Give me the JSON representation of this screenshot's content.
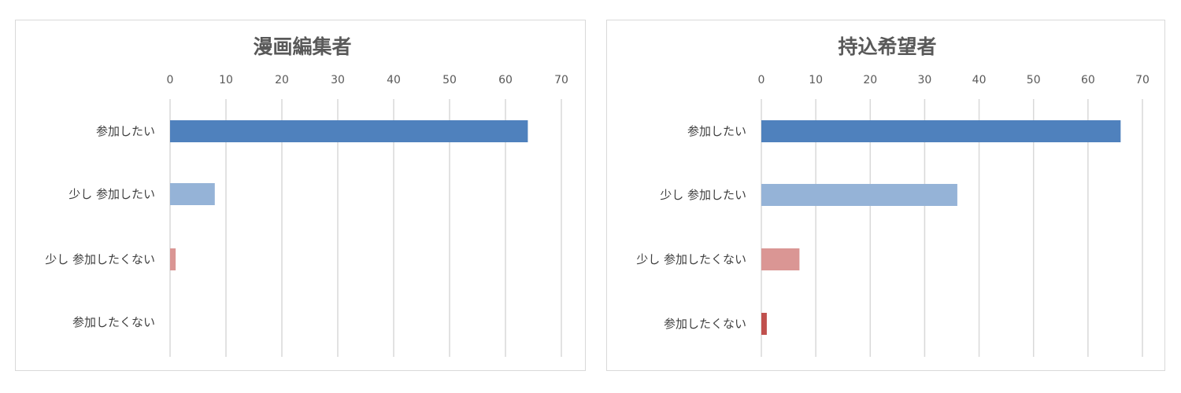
{
  "chart_data": [
    {
      "type": "bar",
      "orientation": "horizontal",
      "title": "漫画編集者",
      "categories": [
        "参加したい",
        "少し参加したい",
        "少し参加したくない",
        "参加したくない"
      ],
      "category_display": [
        "参加したい",
        "少し 参加したい",
        "少し 参加したくない",
        "参加したくない"
      ],
      "values": [
        64,
        8,
        1,
        0
      ],
      "colors": [
        "#4f81bd",
        "#95b3d7",
        "#da9694",
        "#c0504d"
      ],
      "xlim": [
        0,
        70
      ],
      "xticks": [
        "0",
        "10",
        "20",
        "30",
        "40",
        "50",
        "60",
        "70"
      ],
      "x_axis_position": "top",
      "grid": true
    },
    {
      "type": "bar",
      "orientation": "horizontal",
      "title": "持込希望者",
      "categories": [
        "参加したい",
        "少し参加したい",
        "少し参加したくない",
        "参加したくない"
      ],
      "category_display": [
        "参加したい",
        "少し 参加したい",
        "少し 参加したくない",
        "参加したくない"
      ],
      "values": [
        66,
        36,
        7,
        1
      ],
      "colors": [
        "#4f81bd",
        "#95b3d7",
        "#da9694",
        "#c0504d"
      ],
      "xlim": [
        0,
        70
      ],
      "xticks": [
        "0",
        "10",
        "20",
        "30",
        "40",
        "50",
        "60",
        "70"
      ],
      "x_axis_position": "top",
      "grid": true
    }
  ]
}
